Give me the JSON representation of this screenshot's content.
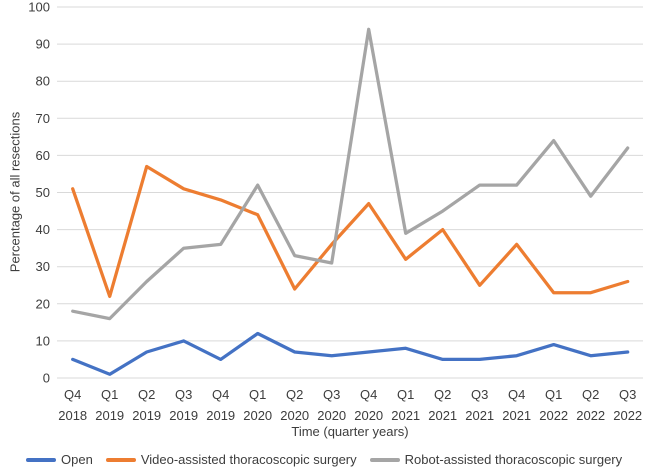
{
  "chart_data": {
    "type": "line",
    "title": "",
    "xlabel": "Time (quarter years)",
    "ylabel": "Percentage of all resections",
    "ylim": [
      0,
      100
    ],
    "ytick_step": 10,
    "grid": "horizontal",
    "legend_position": "bottom",
    "categories": [
      {
        "quarter": "Q4",
        "year": "2018"
      },
      {
        "quarter": "Q1",
        "year": "2019"
      },
      {
        "quarter": "Q2",
        "year": "2019"
      },
      {
        "quarter": "Q3",
        "year": "2019"
      },
      {
        "quarter": "Q4",
        "year": "2019"
      },
      {
        "quarter": "Q1",
        "year": "2020"
      },
      {
        "quarter": "Q2",
        "year": "2020"
      },
      {
        "quarter": "Q3",
        "year": "2020"
      },
      {
        "quarter": "Q4",
        "year": "2020"
      },
      {
        "quarter": "Q1",
        "year": "2021"
      },
      {
        "quarter": "Q2",
        "year": "2021"
      },
      {
        "quarter": "Q3",
        "year": "2021"
      },
      {
        "quarter": "Q4",
        "year": "2021"
      },
      {
        "quarter": "Q1",
        "year": "2022"
      },
      {
        "quarter": "Q2",
        "year": "2022"
      },
      {
        "quarter": "Q3",
        "year": "2022"
      }
    ],
    "series": [
      {
        "name": "Open",
        "color": "#4472C4",
        "values": [
          5,
          1,
          7,
          10,
          5,
          12,
          7,
          6,
          7,
          8,
          5,
          5,
          6,
          9,
          6,
          7
        ]
      },
      {
        "name": "Video-assisted thoracoscopic surgery",
        "color": "#ED7D31",
        "values": [
          51,
          22,
          57,
          51,
          48,
          44,
          24,
          36,
          47,
          32,
          40,
          25,
          36,
          23,
          23,
          26
        ]
      },
      {
        "name": "Robot-assisted thoracoscopic surgery",
        "color": "#A5A5A5",
        "values": [
          18,
          16,
          26,
          35,
          36,
          52,
          33,
          31,
          94,
          39,
          45,
          52,
          52,
          64,
          49,
          62
        ]
      }
    ]
  },
  "colors": {
    "gridline": "#D9D9D9",
    "text": "#3d3d3d",
    "background": "#ffffff"
  }
}
